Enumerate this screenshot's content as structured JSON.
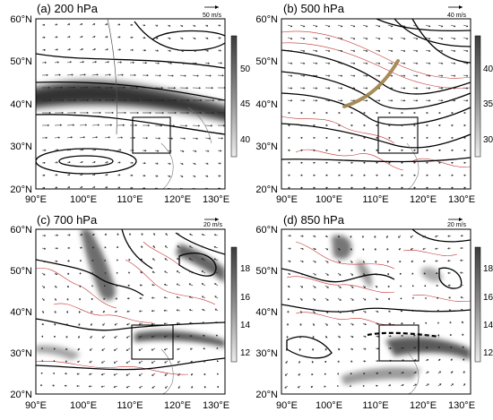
{
  "panels": [
    {
      "id": "a",
      "title": "(a) 200 hPa",
      "ref_vector_label": "50 m/s",
      "colorbar_ticks": [
        "50",
        "45",
        "40"
      ],
      "has_red_contours": false
    },
    {
      "id": "b",
      "title": "(b) 500 hPa",
      "ref_vector_label": "40 m/s",
      "colorbar_ticks": [
        "40",
        "35",
        "30"
      ],
      "has_red_contours": true
    },
    {
      "id": "c",
      "title": "(c) 700 hPa",
      "ref_vector_label": "20 m/s",
      "colorbar_ticks": [
        "18",
        "16",
        "14",
        "12"
      ],
      "has_red_contours": true
    },
    {
      "id": "d",
      "title": "(d) 850 hPa",
      "ref_vector_label": "20 m/s",
      "colorbar_ticks": [
        "18",
        "16",
        "14",
        "12"
      ],
      "has_red_contours": true
    }
  ],
  "lat_labels": [
    "60°N",
    "50°N",
    "40°N",
    "30°N",
    "20°N"
  ],
  "lon_labels": [
    "90°E",
    "100°E",
    "110°E",
    "120°E",
    "130°E"
  ],
  "colors": {
    "shading_dark": "#3c3c3c",
    "shading_light": "#d9d9d9",
    "red_contour": "#c23030",
    "trough_axis": "#9c8148"
  }
}
